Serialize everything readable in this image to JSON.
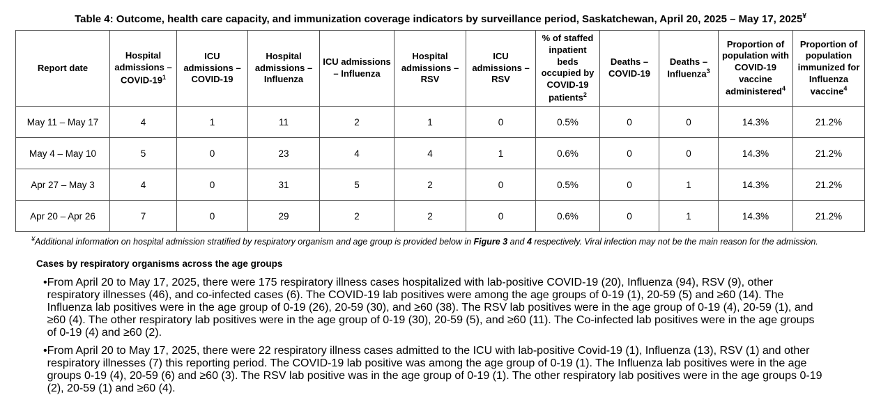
{
  "title": {
    "text": "Table 4: Outcome, health care capacity, and immunization coverage indicators by surveillance period, Saskatchewan, April 20, 2025 – May 17, 2025",
    "sup": "¥"
  },
  "table": {
    "columns": [
      {
        "label": "Report date",
        "sup": ""
      },
      {
        "label": "Hospital admissions – COVID-19",
        "sup": "1"
      },
      {
        "label": "ICU admissions – COVID-19",
        "sup": ""
      },
      {
        "label": "Hospital admissions – Influenza",
        "sup": ""
      },
      {
        "label": "ICU admissions – Influenza",
        "sup": ""
      },
      {
        "label": "Hospital admissions – RSV",
        "sup": ""
      },
      {
        "label": "ICU admissions – RSV",
        "sup": ""
      },
      {
        "label": "% of staffed inpatient beds occupied by COVID-19 patients",
        "sup": "2"
      },
      {
        "label": "Deaths – COVID-19",
        "sup": ""
      },
      {
        "label": "Deaths – Influenza",
        "sup": "3"
      },
      {
        "label": "Proportion of population with COVID-19 vaccine administered",
        "sup": "4"
      },
      {
        "label": "Proportion of population immunized for Influenza vaccine",
        "sup": "4"
      }
    ],
    "rows": [
      [
        "May 11 – May 17",
        "4",
        "1",
        "11",
        "2",
        "1",
        "0",
        "0.5%",
        "0",
        "0",
        "14.3%",
        "21.2%"
      ],
      [
        "May 4 – May 10",
        "5",
        "0",
        "23",
        "4",
        "4",
        "1",
        "0.6%",
        "0",
        "0",
        "14.3%",
        "21.2%"
      ],
      [
        "Apr 27 – May 3",
        "4",
        "0",
        "31",
        "5",
        "2",
        "0",
        "0.5%",
        "0",
        "1",
        "14.3%",
        "21.2%"
      ],
      [
        "Apr 20 – Apr 26",
        "7",
        "0",
        "29",
        "2",
        "2",
        "0",
        "0.6%",
        "0",
        "1",
        "14.3%",
        "21.2%"
      ]
    ]
  },
  "footnote": {
    "sup": "¥",
    "text1": "Additional information on hospital admission stratified by respiratory organism and age group is provided below in ",
    "bold1": "Figure 3",
    "text2": " and ",
    "bold2": "4",
    "text3": " respectively. Viral infection may not be the main reason for the admission."
  },
  "section": {
    "heading": "Cases by respiratory organisms across the age groups",
    "bullet_glyph": "•",
    "bullets": [
      "From April 20 to May 17, 2025, there were 175 respiratory illness cases hospitalized with lab-positive COVID-19 (20), Influenza (94), RSV (9), other respiratory illnesses (46), and co-infected cases (6). The COVID-19 lab positives were among the age groups of 0-19 (1), 20-59 (5) and ≥60 (14). The Influenza lab positives were in the age group of 0-19 (26), 20-59 (30), and ≥60 (38).  The RSV lab positives were in the age group of 0-19 (4), 20-59 (1), and ≥60 (4).  The other respiratory lab positives were in the age group of 0-19 (30), 20-59 (5), and ≥60 (11). The Co-infected lab positives were in the age groups of 0-19 (4) and ≥60 (2).",
      "From April 20 to May 17, 2025, there were 22 respiratory illness cases admitted to the ICU with lab-positive Covid-19 (1), Influenza (13), RSV (1) and other respiratory illnesses (7) this reporting period. The COVID-19 lab positive was among the age group of 0-19 (1). The Influenza lab positives were in the age groups 0-19 (4), 20-59 (6) and ≥60 (3).  The RSV lab positive was in the age group of 0-19 (1). The other respiratory lab positives were in the age groups 0-19 (2), 20-59 (1) and ≥60 (4)."
    ]
  },
  "colors": {
    "border": "#4d4d4d",
    "text": "#000000",
    "background": "#ffffff"
  }
}
